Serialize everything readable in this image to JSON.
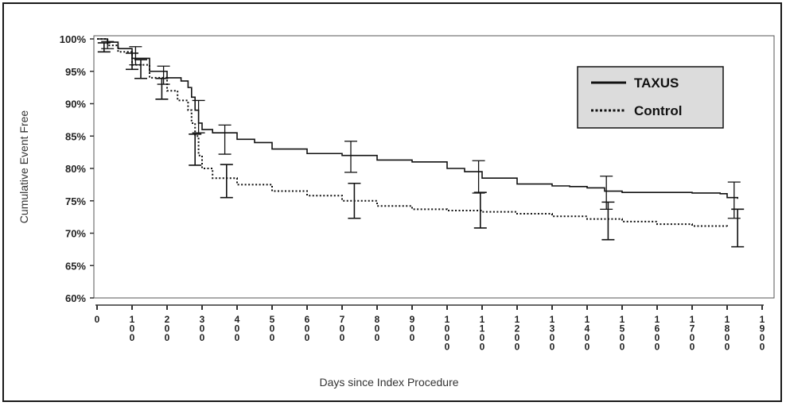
{
  "chart_data": {
    "type": "line",
    "xlabel": "Days since Index Procedure",
    "ylabel": "Cumulative Event Free",
    "xlim": [
      0,
      1900
    ],
    "ylim": [
      60,
      100
    ],
    "x_ticks": [
      "0",
      "100",
      "200",
      "300",
      "400",
      "500",
      "600",
      "700",
      "800",
      "900",
      "1000",
      "1100",
      "1200",
      "1300",
      "1400",
      "1500",
      "1600",
      "1700",
      "1800",
      "1900"
    ],
    "y_ticks": [
      "60%",
      "65%",
      "70%",
      "75%",
      "80%",
      "85%",
      "90%",
      "95%",
      "100%"
    ],
    "grid": false,
    "legend_position": "top-right",
    "series": [
      {
        "name": "TAXUS",
        "color": "#111111",
        "style": "solid",
        "x": [
          0,
          30,
          60,
          100,
          150,
          200,
          240,
          260,
          270,
          280,
          290,
          300,
          330,
          400,
          450,
          500,
          600,
          700,
          800,
          900,
          1000,
          1050,
          1100,
          1200,
          1300,
          1350,
          1400,
          1450,
          1500,
          1600,
          1700,
          1780,
          1800,
          1830
        ],
        "y": [
          100,
          99.5,
          98.5,
          97,
          95,
          94,
          93.5,
          92.5,
          91,
          89,
          87,
          86,
          85.5,
          84.5,
          84,
          83,
          82.3,
          82,
          81.3,
          81,
          80,
          79.5,
          78.5,
          77.6,
          77.3,
          77.2,
          77,
          76.5,
          76.3,
          76.3,
          76.2,
          76.1,
          75.5,
          75.3
        ]
      },
      {
        "name": "Control",
        "color": "#111111",
        "style": "dotted",
        "x": [
          0,
          30,
          60,
          100,
          150,
          200,
          230,
          260,
          270,
          280,
          290,
          300,
          330,
          400,
          500,
          600,
          700,
          800,
          900,
          1000,
          1100,
          1200,
          1300,
          1400,
          1500,
          1600,
          1700,
          1800
        ],
        "y": [
          100,
          99,
          98,
          96,
          94,
          92,
          90.5,
          89,
          87,
          85,
          82,
          80,
          78.5,
          77.5,
          76.5,
          75.8,
          75,
          74.2,
          73.7,
          73.5,
          73.3,
          73,
          72.6,
          72.2,
          71.8,
          71.4,
          71.1,
          70.8
        ]
      }
    ],
    "error_bars": [
      {
        "series": "TAXUS",
        "x": 30,
        "y": 99,
        "low": 98.5,
        "high": 99.6
      },
      {
        "series": "TAXUS",
        "x": 110,
        "y": 97.5,
        "low": 96,
        "high": 98.8
      },
      {
        "series": "TAXUS",
        "x": 190,
        "y": 94.5,
        "low": 93,
        "high": 95.8
      },
      {
        "series": "TAXUS",
        "x": 290,
        "y": 88,
        "low": 85.5,
        "high": 90.5
      },
      {
        "series": "TAXUS",
        "x": 365,
        "y": 84.5,
        "low": 82.2,
        "high": 86.7
      },
      {
        "series": "TAXUS",
        "x": 725,
        "y": 81.8,
        "low": 79.4,
        "high": 84.2
      },
      {
        "series": "TAXUS",
        "x": 1090,
        "y": 78.7,
        "low": 76.2,
        "high": 81.2
      },
      {
        "series": "TAXUS",
        "x": 1455,
        "y": 76.3,
        "low": 73.7,
        "high": 78.8
      },
      {
        "series": "TAXUS",
        "x": 1820,
        "y": 75.3,
        "low": 72.3,
        "high": 77.9
      },
      {
        "series": "Control",
        "x": 20,
        "y": 98.7,
        "low": 98,
        "high": 99.4
      },
      {
        "series": "Control",
        "x": 100,
        "y": 96.5,
        "low": 95.3,
        "high": 97.8
      },
      {
        "series": "Control",
        "x": 125,
        "y": 95.3,
        "low": 93.9,
        "high": 96.8
      },
      {
        "series": "Control",
        "x": 185,
        "y": 92.3,
        "low": 90.7,
        "high": 93.9
      },
      {
        "series": "Control",
        "x": 280,
        "y": 82.8,
        "low": 80.5,
        "high": 85.3
      },
      {
        "series": "Control",
        "x": 370,
        "y": 78,
        "low": 75.5,
        "high": 80.6
      },
      {
        "series": "Control",
        "x": 735,
        "y": 75,
        "low": 72.3,
        "high": 77.7
      },
      {
        "series": "Control",
        "x": 1095,
        "y": 73.5,
        "low": 70.8,
        "high": 76.3
      },
      {
        "series": "Control",
        "x": 1460,
        "y": 71.9,
        "low": 69,
        "high": 74.8
      },
      {
        "series": "Control",
        "x": 1830,
        "y": 70.8,
        "low": 67.9,
        "high": 73.7
      }
    ]
  }
}
